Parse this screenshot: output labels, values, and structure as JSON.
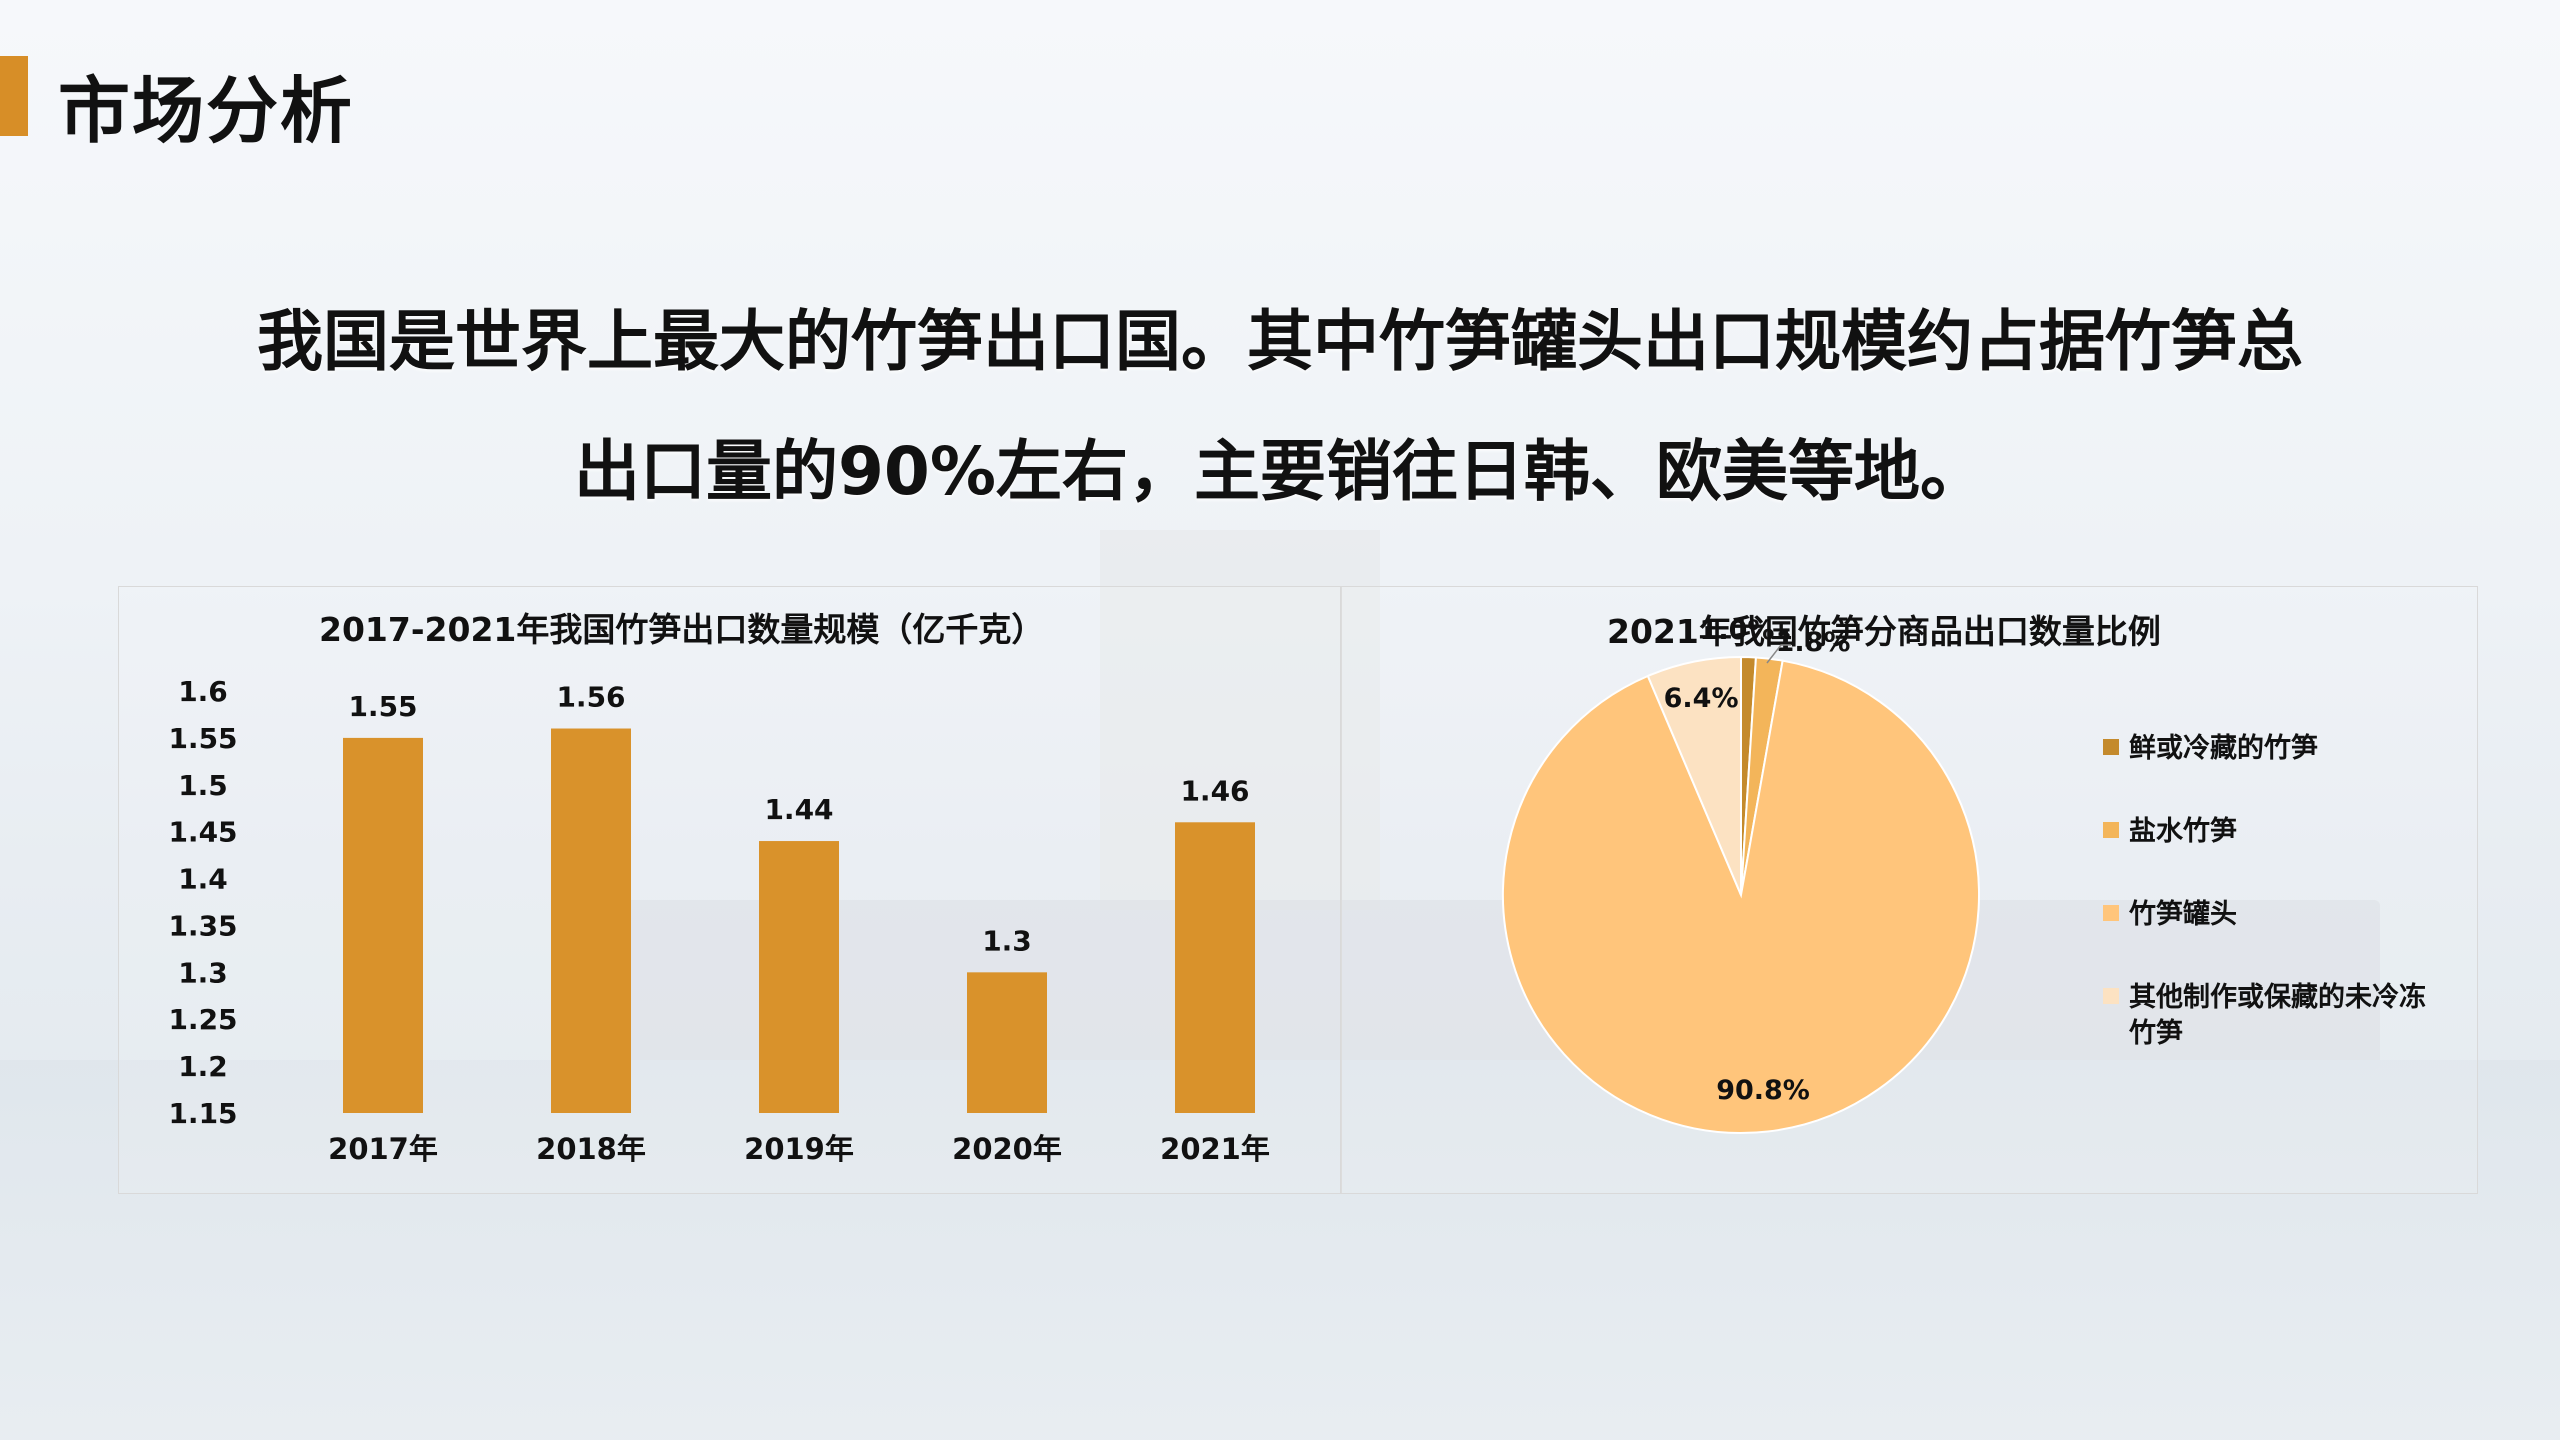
{
  "page": {
    "title": "市场分析",
    "lead_line1": "我国是世界上最大的竹笋出口国。其中竹笋罐头出口规模约占据竹笋总",
    "lead_line2": "出口量的90%左右，主要销往日韩、欧美等地。"
  },
  "colors": {
    "accent": "#D78E27",
    "bar": "#D9922B",
    "pie": [
      "#C48A2C",
      "#F3B55A",
      "#FFC57B",
      "#FCE2C2"
    ]
  },
  "chart_data": [
    {
      "type": "bar",
      "title": "2017-2021年我国竹笋出口数量规模（亿千克）",
      "categories": [
        "2017年",
        "2018年",
        "2019年",
        "2020年",
        "2021年"
      ],
      "values": [
        1.55,
        1.56,
        1.44,
        1.3,
        1.46
      ],
      "value_labels": [
        "1.55",
        "1.56",
        "1.44",
        "1.3",
        "1.46"
      ],
      "ylim": [
        1.15,
        1.6
      ],
      "yticks": [
        "1.6",
        "1.55",
        "1.5",
        "1.45",
        "1.4",
        "1.35",
        "1.3",
        "1.25",
        "1.2",
        "1.15"
      ],
      "grid": false
    },
    {
      "type": "pie",
      "title": "2021年我国竹笋分商品出口数量比例",
      "legend_position": "right",
      "slices": [
        {
          "name": "鲜或冷藏的竹笋",
          "value": 1.0,
          "label": "1.0%"
        },
        {
          "name": "盐水竹笋",
          "value": 1.8,
          "label": "1.8%"
        },
        {
          "name": "竹笋罐头",
          "value": 90.8,
          "label": "90.8%"
        },
        {
          "name": "其他制作或保藏的未冷冻竹笋",
          "value": 6.4,
          "label": "6.4%"
        }
      ],
      "legend_lines": [
        [
          "鲜或冷藏的竹笋"
        ],
        [
          "盐水竹笋"
        ],
        [
          "竹笋罐头"
        ],
        [
          "其他制作或保藏的未冷冻",
          "竹笋"
        ]
      ]
    }
  ]
}
